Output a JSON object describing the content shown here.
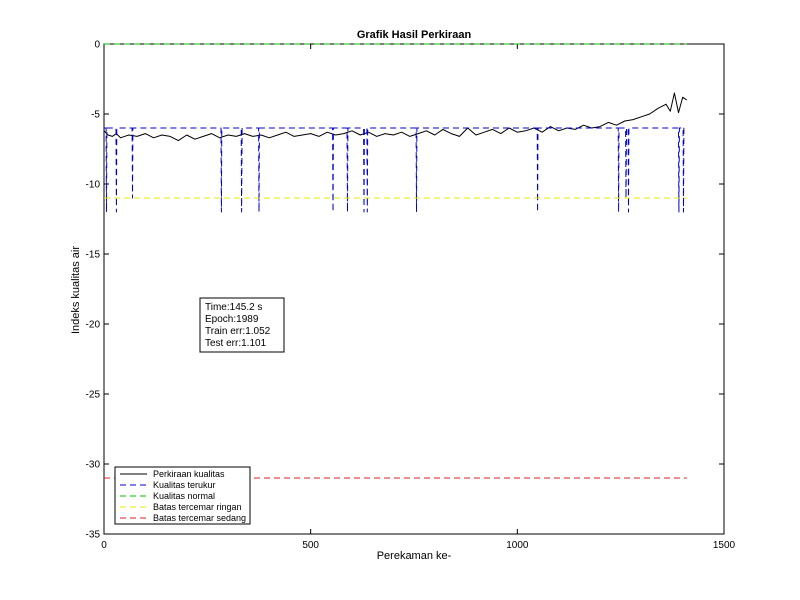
{
  "chart_data": {
    "type": "line",
    "title": "Grafik Hasil Perkiraan",
    "xlabel": "Perekaman ke-",
    "ylabel": "Indeks kualitas air",
    "xlim": [
      0,
      1500
    ],
    "ylim": [
      -35,
      0
    ],
    "xticks": [
      0,
      500,
      1000,
      1500
    ],
    "yticks": [
      0,
      -5,
      -10,
      -15,
      -20,
      -25,
      -30,
      -35
    ],
    "grid": false,
    "legend_position": "bottom-left",
    "series": [
      {
        "name": "Perkiraan kualitas",
        "style": "solid",
        "color": "#000000",
        "x": [
          0,
          10,
          20,
          30,
          40,
          60,
          80,
          100,
          120,
          140,
          160,
          180,
          200,
          220,
          240,
          260,
          280,
          300,
          320,
          340,
          360,
          380,
          400,
          420,
          440,
          460,
          480,
          500,
          520,
          540,
          560,
          580,
          600,
          620,
          640,
          660,
          680,
          700,
          720,
          740,
          760,
          780,
          800,
          820,
          840,
          860,
          880,
          900,
          920,
          940,
          960,
          980,
          1000,
          1020,
          1040,
          1060,
          1080,
          1100,
          1120,
          1140,
          1160,
          1180,
          1200,
          1220,
          1240,
          1260,
          1280,
          1300,
          1320,
          1340,
          1360,
          1370,
          1380,
          1390,
          1400,
          1410
        ],
        "y": [
          -6.2,
          -6.5,
          -6.6,
          -6.4,
          -6.7,
          -6.5,
          -6.6,
          -6.4,
          -6.7,
          -6.5,
          -6.6,
          -6.9,
          -6.5,
          -6.8,
          -6.6,
          -6.4,
          -6.7,
          -6.5,
          -6.6,
          -6.4,
          -6.6,
          -6.5,
          -6.7,
          -6.5,
          -6.3,
          -6.6,
          -6.5,
          -6.4,
          -6.6,
          -6.3,
          -6.5,
          -6.4,
          -6.2,
          -6.5,
          -6.3,
          -6.6,
          -6.4,
          -6.5,
          -6.3,
          -6.6,
          -6.4,
          -6.2,
          -6.5,
          -6.1,
          -6.4,
          -6.6,
          -6.0,
          -6.5,
          -6.3,
          -6.1,
          -6.4,
          -6.0,
          -6.3,
          -6.2,
          -6.0,
          -6.3,
          -5.9,
          -6.2,
          -6.0,
          -6.1,
          -5.8,
          -6.0,
          -5.9,
          -5.6,
          -5.8,
          -5.5,
          -5.4,
          -5.2,
          -5.0,
          -4.6,
          -4.3,
          -4.8,
          -3.5,
          -4.9,
          -3.8,
          -4.0
        ]
      },
      {
        "name": "Kualitas terukur",
        "style": "dashed",
        "color": "#0000cc",
        "x": [
          0,
          5,
          6,
          7,
          29,
          30,
          31,
          68,
          69,
          70,
          283,
          284,
          285,
          332,
          333,
          334,
          374,
          375,
          376,
          553,
          554,
          555,
          588,
          589,
          590,
          628,
          629,
          630,
          636,
          637,
          638,
          755,
          756,
          757,
          1048,
          1049,
          1050,
          1244,
          1245,
          1246,
          1262,
          1263,
          1264,
          1268,
          1269,
          1270,
          1390,
          1391,
          1392,
          1401,
          1402,
          1403,
          1410
        ],
        "y": [
          -6,
          -6,
          -12,
          -6,
          -6,
          -12,
          -6,
          -6,
          -11,
          -6,
          -6,
          -12,
          -6,
          -6,
          -12,
          -6,
          -6,
          -12,
          -6,
          -6,
          -12,
          -6,
          -6,
          -12,
          -6,
          -6,
          -12,
          -6,
          -6,
          -12,
          -6,
          -6,
          -12,
          -6,
          -6,
          -12,
          -6,
          -6,
          -12,
          -6,
          -6,
          -11,
          -6,
          -6,
          -12,
          -6,
          -6,
          -12,
          -6,
          -6,
          -12,
          -6,
          -6
        ]
      },
      {
        "name": "Kualitas normal",
        "style": "dashed",
        "color": "#00bb00",
        "x": [
          0,
          1410
        ],
        "y": [
          0,
          0
        ]
      },
      {
        "name": "Batas tercemar ringan",
        "style": "dashed",
        "color": "#e8e800",
        "x": [
          0,
          1410
        ],
        "y": [
          -11,
          -11
        ]
      },
      {
        "name": "Batas tercemar sedang",
        "style": "dashed",
        "color": "#dd2222",
        "x": [
          0,
          1410
        ],
        "y": [
          -31,
          -31
        ]
      }
    ],
    "annotation": {
      "lines": [
        "Time:145.2 s",
        "Epoch:1989",
        "Train err:1.052",
        "Test err:1.101"
      ]
    }
  }
}
